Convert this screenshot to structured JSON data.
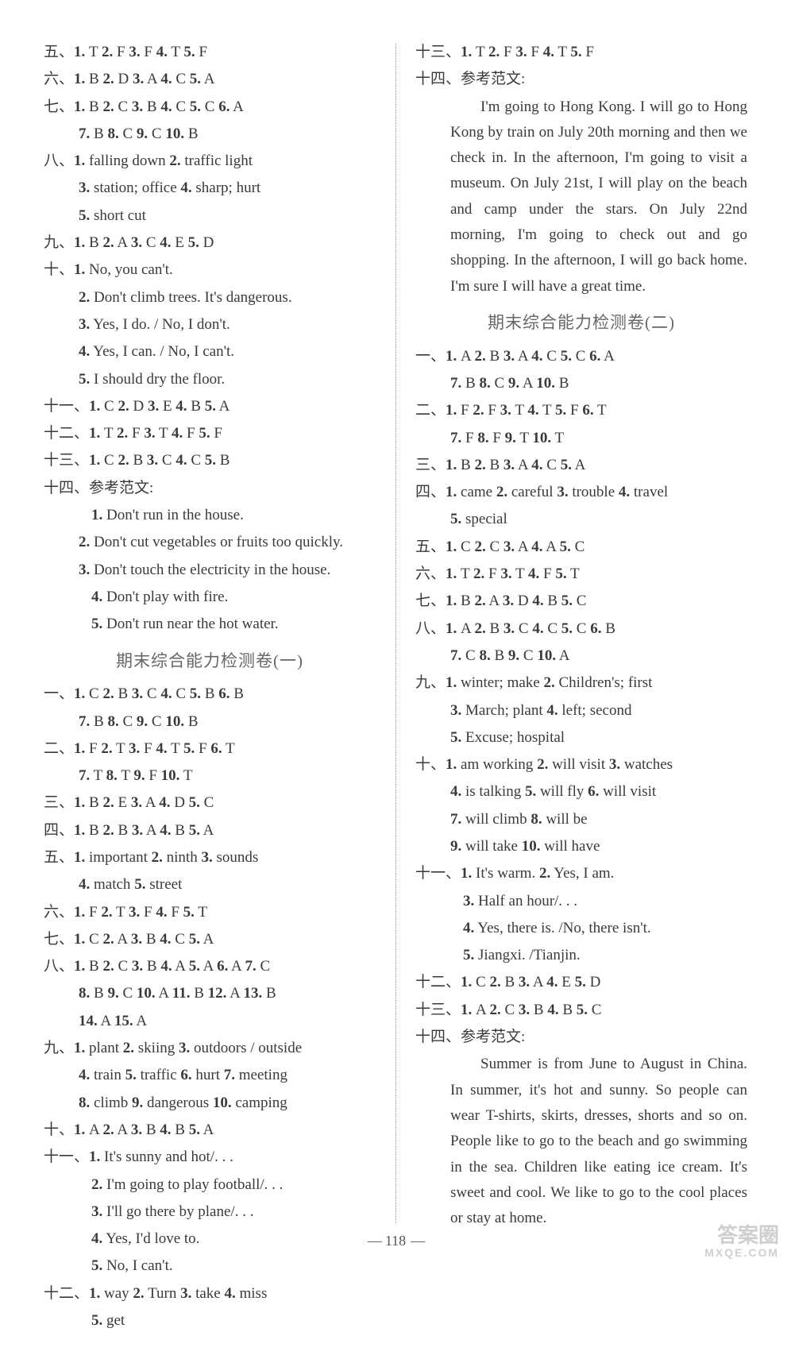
{
  "left": {
    "l1": "五、1. T  2. F  3. F  4. T  5. F",
    "l2": "六、1. B  2. D  3. A  4. C  5. A",
    "l3": "七、1. B  2. C  3. B  4. C  5. C  6. A",
    "l3b": "7. B  8. C  9. C  10. B",
    "l4": "八、1. falling down  2. traffic light",
    "l4b": "3. station; office  4. sharp; hurt",
    "l4c": "5. short cut",
    "l5": "九、1. B  2. A  3. C  4. E  5. D",
    "l6": "十、1. No, you can't.",
    "l6b": "2. Don't climb trees. It's dangerous.",
    "l6c": "3. Yes, I do. / No, I don't.",
    "l6d": "4. Yes, I can. / No, I can't.",
    "l6e": "5. I should dry the floor.",
    "l7": "十一、1. C  2. D  3. E  4. B  5. A",
    "l8": "十二、1. T  2. F  3. T  4. F  5. F",
    "l9": "十三、1. C  2. B  3. C  4. C  5. B",
    "l10": "十四、参考范文:",
    "l10a": "1. Don't run in the house.",
    "l10b": "2. Don't cut vegetables or fruits too quickly.",
    "l10c": "3. Don't touch the electricity in the house.",
    "l10d": "4. Don't play with fire.",
    "l10e": "5. Don't run near the hot water.",
    "title1": "期末综合能力检测卷(一)",
    "s1": "一、1. C  2. B  3. C  4. C  5. B  6. B",
    "s1b": "7. B  8. C  9. C  10. B",
    "s2": "二、1. F  2. T  3. F  4. T  5. F  6. T",
    "s2b": "7. T  8. T  9. F  10. T",
    "s3": "三、1. B  2. E  3. A  4. D  5. C",
    "s4": "四、1. B  2. B  3. A  4. B  5. A",
    "s5": "五、1. important  2. ninth  3. sounds",
    "s5b": "4. match  5. street",
    "s6": "六、1. F  2. T  3. F  4. F  5. T",
    "s7": "七、1. C  2. A  3. B  4. C  5. A",
    "s8": "八、1. B  2. C  3. B  4. A  5. A  6. A  7. C",
    "s8b": "8. B  9. C  10. A  11. B  12. A  13. B",
    "s8c": "14. A  15. A",
    "s9": "九、1. plant  2. skiing  3. outdoors / outside",
    "s9b": "4. train  5. traffic  6. hurt  7. meeting",
    "s9c": "8. climb  9. dangerous  10. camping",
    "s10": "十、1. A  2. A  3. B  4. B  5. A",
    "s11": "十一、1. It's sunny and hot/. . .",
    "s11b": "2. I'm going to play football/. . .",
    "s11c": "3. I'll go there by plane/. . .",
    "s11d": "4. Yes, I'd love to.",
    "s11e": "5. No, I can't.",
    "s12": "十二、1. way  2. Turn  3. take  4. miss",
    "s12b": "5. get"
  },
  "right": {
    "r1": "十三、1. T  2. F  3. F  4. T  5. F",
    "r2": "十四、参考范文:",
    "essay1": "I'm going to Hong Kong. I will go to Hong Kong by train on July 20th morning and then we check in. In the afternoon, I'm going to visit a museum. On July 21st, I will play on the beach and camp under the stars. On July 22nd morning, I'm going to check out and go shopping. In the afternoon, I will go back home. I'm sure I will have a great time.",
    "title2": "期末综合能力检测卷(二)",
    "t1": "一、1. A  2. B  3. A  4. C  5. C  6. A",
    "t1b": "7. B  8. C  9. A  10. B",
    "t2": "二、1. F  2. F  3. T  4. T  5. F  6. T",
    "t2b": "7. F  8. F  9. T  10. T",
    "t3": "三、1. B  2. B  3. A  4. C  5. A",
    "t4": "四、1. came  2. careful  3. trouble  4. travel",
    "t4b": "5. special",
    "t5": "五、1. C  2. C  3. A  4. A  5. C",
    "t6": "六、1. T  2. F  3. T  4. F  5. T",
    "t7": "七、1. B  2. A  3. D  4. B  5. C",
    "t8": "八、1. A  2. B  3. C  4. C  5. C  6. B",
    "t8b": "7. C  8. B  9. C  10. A",
    "t9": "九、1. winter; make  2. Children's; first",
    "t9b": "3. March; plant  4. left; second",
    "t9c": "5. Excuse; hospital",
    "t10": "十、1. am working  2. will visit  3. watches",
    "t10b": "4. is talking  5. will fly  6. will visit",
    "t10c": "7. will climb  8. will be",
    "t10d": "9. will take  10. will have",
    "t11": "十一、1. It's warm.   2. Yes, I am.",
    "t11b": "3. Half an hour/. . .",
    "t11c": "4. Yes, there is. /No, there isn't.",
    "t11d": "5. Jiangxi. /Tianjin.",
    "t12": "十二、1. C  2. B  3. A  4. E  5. D",
    "t13": "十三、1. A  2. C  3. B  4. B  5. C",
    "t14": "十四、参考范文:",
    "essay2": "Summer is from June to August in China. In summer, it's hot and sunny. So people can wear T-shirts, skirts, dresses, shorts and so on. People like to go to the beach and go swimming in the sea. Children like eating ice cream. It's sweet and cool. We like to go to the cool places or stay at home."
  },
  "page_number": "118",
  "watermark": {
    "main": "答案圈",
    "sub": "MXQE.COM"
  }
}
